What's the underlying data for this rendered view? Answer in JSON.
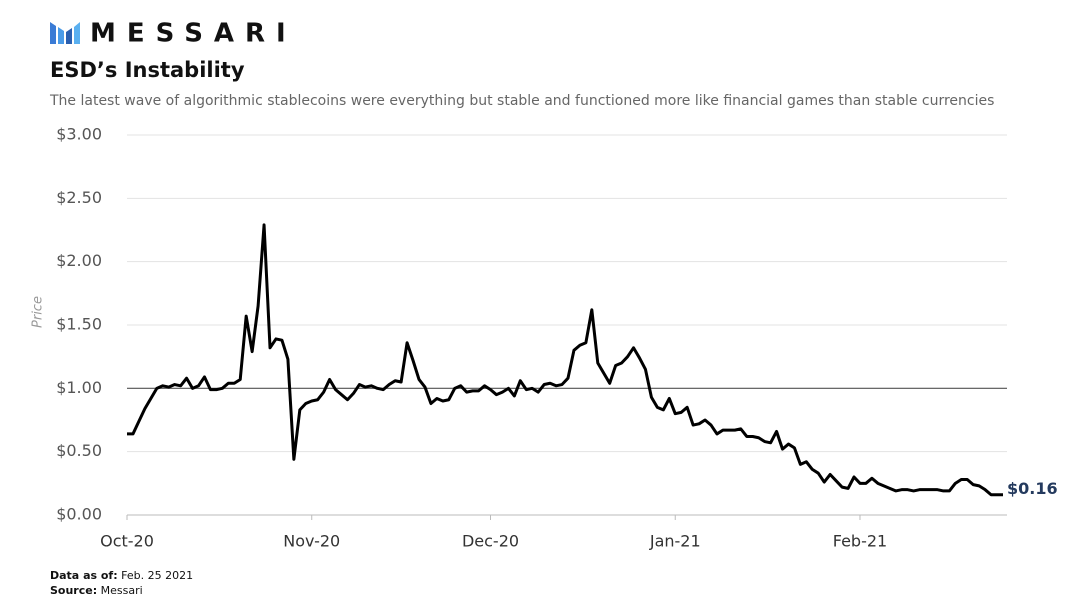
{
  "brand": "MESSARI",
  "notes": [
    {
      "label": "Data as of:",
      "text": "Feb. 25 2021"
    },
    {
      "label": "Source:",
      "text": "Messari"
    }
  ],
  "chart_data": {
    "type": "line",
    "title": "ESD’s Instability",
    "subtitle": "The latest wave of algorithmic stablecoins were everything but stable and functioned more like financial games than stable currencies",
    "y_label": "Price",
    "categories": [
      "Oct-20",
      null,
      null,
      null,
      null,
      null,
      null,
      null,
      null,
      null,
      null,
      null,
      null,
      null,
      null,
      null,
      null,
      null,
      null,
      null,
      null,
      null,
      null,
      null,
      null,
      null,
      null,
      null,
      null,
      null,
      null,
      "Nov-20",
      null,
      null,
      null,
      null,
      null,
      null,
      null,
      null,
      null,
      null,
      null,
      null,
      null,
      null,
      null,
      null,
      null,
      null,
      null,
      null,
      null,
      null,
      null,
      null,
      null,
      null,
      null,
      null,
      null,
      "Dec-20",
      null,
      null,
      null,
      null,
      null,
      null,
      null,
      null,
      null,
      null,
      null,
      null,
      null,
      null,
      null,
      null,
      null,
      null,
      null,
      null,
      null,
      null,
      null,
      null,
      null,
      null,
      null,
      null,
      null,
      null,
      "Jan-21",
      null,
      null,
      null,
      null,
      null,
      null,
      null,
      null,
      null,
      null,
      null,
      null,
      null,
      null,
      null,
      null,
      null,
      null,
      null,
      null,
      null,
      null,
      null,
      null,
      null,
      null,
      null,
      null,
      null,
      null,
      "Feb-21",
      null,
      null,
      null,
      null,
      null,
      null,
      null,
      null,
      null,
      null,
      null,
      null,
      null,
      null,
      null,
      null,
      null,
      null,
      null,
      null,
      null,
      null,
      null,
      null
    ],
    "series": [
      {
        "name": "ESD",
        "color": "#000000",
        "values": [
          0.64,
          0.64,
          0.74,
          0.84,
          0.92,
          1.0,
          1.02,
          1.01,
          1.03,
          1.02,
          1.08,
          1.0,
          1.02,
          1.09,
          0.99,
          0.99,
          1.0,
          1.04,
          1.04,
          1.07,
          1.57,
          1.29,
          1.65,
          2.29,
          1.32,
          1.39,
          1.38,
          1.23,
          0.44,
          0.83,
          0.88,
          0.9,
          0.91,
          0.97,
          1.07,
          0.99,
          0.95,
          0.91,
          0.96,
          1.03,
          1.01,
          1.02,
          1.0,
          0.99,
          1.03,
          1.06,
          1.05,
          1.36,
          1.22,
          1.07,
          1.01,
          0.88,
          0.92,
          0.9,
          0.91,
          1.0,
          1.02,
          0.97,
          0.98,
          0.98,
          1.02,
          0.99,
          0.95,
          0.97,
          1.0,
          0.94,
          1.06,
          0.99,
          1.0,
          0.97,
          1.03,
          1.04,
          1.02,
          1.03,
          1.08,
          1.3,
          1.34,
          1.36,
          1.62,
          1.2,
          1.12,
          1.04,
          1.18,
          1.2,
          1.25,
          1.32,
          1.24,
          1.15,
          0.93,
          0.85,
          0.83,
          0.92,
          0.8,
          0.81,
          0.85,
          0.71,
          0.72,
          0.75,
          0.71,
          0.64,
          0.67,
          0.67,
          0.67,
          0.68,
          0.62,
          0.62,
          0.61,
          0.58,
          0.57,
          0.66,
          0.52,
          0.56,
          0.53,
          0.4,
          0.42,
          0.36,
          0.33,
          0.26,
          0.32,
          0.27,
          0.22,
          0.21,
          0.3,
          0.25,
          0.25,
          0.29,
          0.25,
          0.23,
          0.21,
          0.19,
          0.2,
          0.2,
          0.19,
          0.2,
          0.2,
          0.2,
          0.2,
          0.19,
          0.19,
          0.25,
          0.28,
          0.28,
          0.24,
          0.23,
          0.2,
          0.16,
          0.16,
          0.16
        ],
        "value_labels": [
          null,
          null,
          null,
          null,
          null,
          null,
          null,
          null,
          null,
          null,
          null,
          null,
          null,
          null,
          null,
          null,
          null,
          null,
          null,
          null,
          null,
          null,
          null,
          null,
          null,
          null,
          null,
          null,
          null,
          null,
          null,
          null,
          null,
          null,
          null,
          null,
          null,
          null,
          null,
          null,
          null,
          null,
          null,
          null,
          null,
          null,
          null,
          null,
          null,
          null,
          null,
          null,
          null,
          null,
          null,
          null,
          null,
          null,
          null,
          null,
          null,
          null,
          null,
          null,
          null,
          null,
          null,
          null,
          null,
          null,
          null,
          null,
          null,
          null,
          null,
          null,
          null,
          null,
          null,
          null,
          null,
          null,
          null,
          null,
          null,
          null,
          null,
          null,
          null,
          null,
          null,
          null,
          null,
          null,
          null,
          null,
          null,
          null,
          null,
          null,
          null,
          null,
          null,
          null,
          null,
          null,
          null,
          null,
          null,
          null,
          null,
          null,
          null,
          null,
          null,
          null,
          null,
          null,
          null,
          null,
          null,
          null,
          null,
          null,
          null,
          null,
          null,
          null,
          null,
          null,
          null,
          null,
          null,
          null,
          null,
          null,
          null,
          null,
          null,
          null,
          null,
          null,
          null,
          null,
          null,
          null,
          null,
          "$0.16"
        ]
      }
    ],
    "ylim": [
      0,
      3
    ],
    "yticks": [
      {
        "value": 0,
        "label": "$0.00"
      },
      {
        "value": 0.5,
        "label": "$0.50"
      },
      {
        "value": 1,
        "label": "$1.00"
      },
      {
        "value": 1.5,
        "label": "$1.50"
      },
      {
        "value": 2,
        "label": "$2.00"
      },
      {
        "value": 2.5,
        "label": "$2.50"
      },
      {
        "value": 3,
        "label": "$3.00"
      }
    ],
    "reference_line": 1,
    "grid": true
  }
}
